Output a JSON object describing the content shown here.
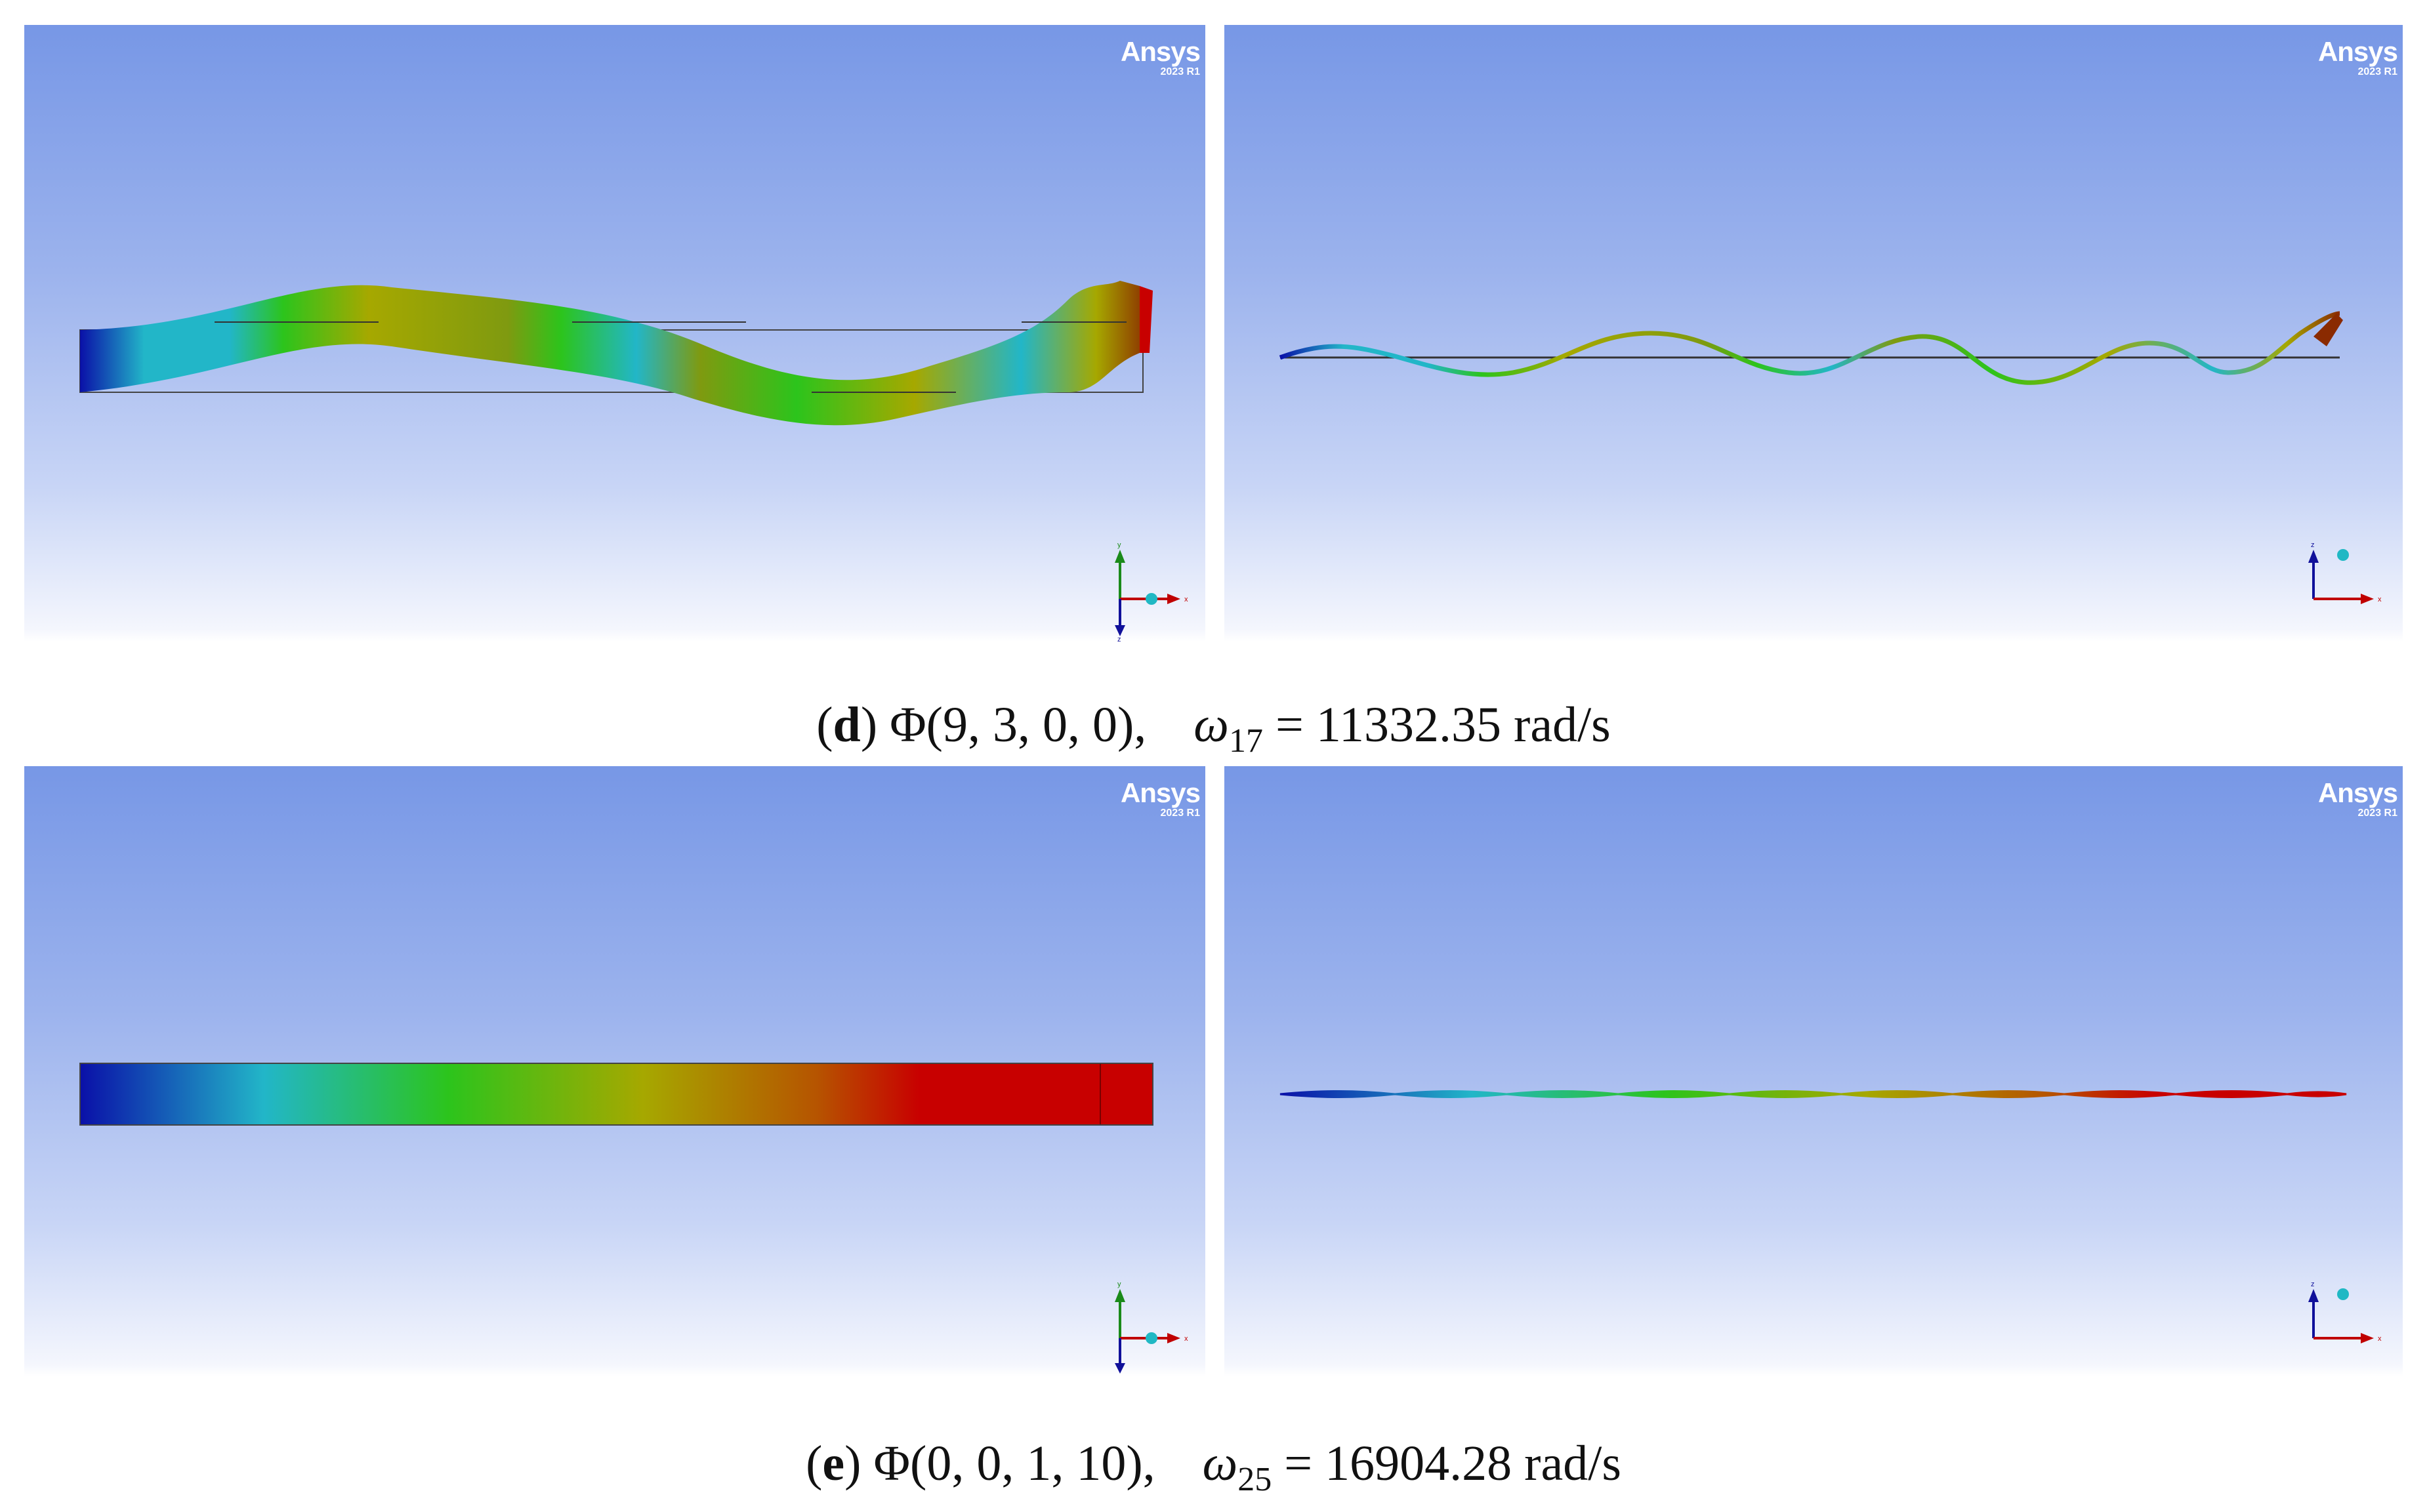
{
  "watermark": {
    "brand": "Ansys",
    "version": "2023 R1"
  },
  "axis_labels": {
    "x": "x",
    "y": "y",
    "z": "z"
  },
  "colors": {
    "bg_top": "#7797e6",
    "bg_bottom": "#ffffff",
    "contour_blue": "#0a10a8",
    "contour_cyan": "#22b6c8",
    "contour_green": "#2cc41c",
    "contour_yellow": "#a6a800",
    "contour_red": "#c80000"
  },
  "figures": [
    {
      "label": "d",
      "mode": "Φ(9, 3, 0, 0),",
      "omega_symbol": "ω",
      "omega_index": "17",
      "equals": "=",
      "value": "11332.35 rad/s"
    },
    {
      "label": "e",
      "mode": "Φ(0, 0, 1, 10),",
      "omega_symbol": "ω",
      "omega_index": "25",
      "equals": "=",
      "value": "16904.28 rad/s"
    }
  ]
}
